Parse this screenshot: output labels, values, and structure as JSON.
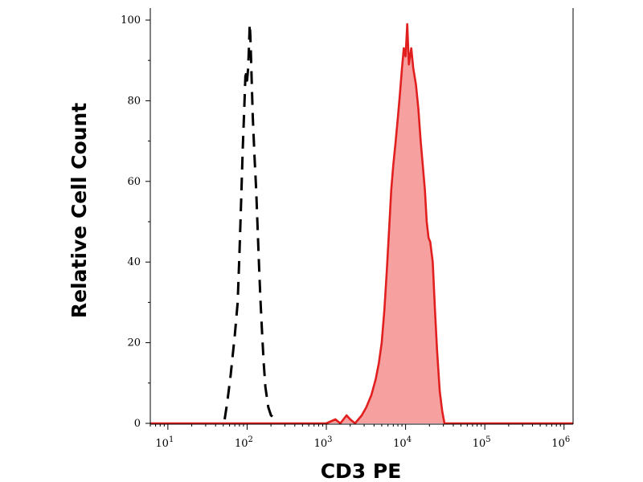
{
  "chart_data": {
    "type": "area",
    "xlabel": "CD3 PE",
    "ylabel": "Relative Cell Count",
    "x_scale": "log",
    "xlim": [
      6,
      1300000
    ],
    "ylim": [
      0,
      100
    ],
    "grid": false,
    "y_ticks": [
      {
        "value": 0,
        "label": "0"
      },
      {
        "value": 20,
        "label": "20"
      },
      {
        "value": 40,
        "label": "40"
      },
      {
        "value": 60,
        "label": "60"
      },
      {
        "value": 80,
        "label": "80"
      },
      {
        "value": 100,
        "label": "100"
      }
    ],
    "x_ticks": [
      {
        "value": 10,
        "base": "10",
        "exp": "1"
      },
      {
        "value": 100,
        "base": "10",
        "exp": "2"
      },
      {
        "value": 1000,
        "base": "10",
        "exp": "3"
      },
      {
        "value": 10000,
        "base": "10",
        "exp": "4"
      },
      {
        "value": 100000,
        "base": "10",
        "exp": "5"
      },
      {
        "value": 1000000,
        "base": "10",
        "exp": "6"
      }
    ],
    "series": [
      {
        "style": "dashed",
        "color": "#000000",
        "fill": "none",
        "points": [
          [
            52,
            1
          ],
          [
            56,
            5
          ],
          [
            62,
            12
          ],
          [
            70,
            22
          ],
          [
            76,
            30
          ],
          [
            80,
            42
          ],
          [
            84,
            55
          ],
          [
            88,
            68
          ],
          [
            92,
            78
          ],
          [
            95,
            86
          ],
          [
            98,
            87
          ],
          [
            100,
            85
          ],
          [
            103,
            88
          ],
          [
            106,
            94
          ],
          [
            108,
            99
          ],
          [
            110,
            96
          ],
          [
            113,
            88
          ],
          [
            118,
            76
          ],
          [
            124,
            66
          ],
          [
            130,
            58
          ],
          [
            136,
            48
          ],
          [
            142,
            38
          ],
          [
            148,
            30
          ],
          [
            155,
            22
          ],
          [
            162,
            15
          ],
          [
            170,
            9
          ],
          [
            185,
            4
          ],
          [
            200,
            2
          ],
          [
            230,
            1
          ]
        ]
      },
      {
        "style": "solid",
        "color": "#e21f1f",
        "fill": "#f7a0a0",
        "points": [
          [
            6,
            0
          ],
          [
            100,
            0
          ],
          [
            1000,
            0
          ],
          [
            1300,
            1
          ],
          [
            1500,
            0
          ],
          [
            1800,
            2
          ],
          [
            2000,
            1
          ],
          [
            2300,
            0
          ],
          [
            2800,
            2
          ],
          [
            3200,
            4
          ],
          [
            3700,
            7
          ],
          [
            4200,
            11
          ],
          [
            4600,
            15
          ],
          [
            5000,
            20
          ],
          [
            5400,
            28
          ],
          [
            5800,
            38
          ],
          [
            6200,
            48
          ],
          [
            6600,
            58
          ],
          [
            7000,
            64
          ],
          [
            7500,
            70
          ],
          [
            8000,
            76
          ],
          [
            8500,
            82
          ],
          [
            9000,
            88
          ],
          [
            9500,
            93
          ],
          [
            10000,
            91
          ],
          [
            10500,
            99
          ],
          [
            11000,
            89
          ],
          [
            11800,
            93
          ],
          [
            12500,
            88
          ],
          [
            13500,
            84
          ],
          [
            14500,
            78
          ],
          [
            15500,
            70
          ],
          [
            16500,
            64
          ],
          [
            17500,
            58
          ],
          [
            18500,
            50
          ],
          [
            19500,
            46
          ],
          [
            20500,
            45
          ],
          [
            22000,
            40
          ],
          [
            23500,
            28
          ],
          [
            25000,
            18
          ],
          [
            27000,
            8
          ],
          [
            29000,
            3
          ],
          [
            31000,
            0
          ],
          [
            100000,
            0
          ],
          [
            1300000,
            0
          ]
        ]
      }
    ]
  }
}
